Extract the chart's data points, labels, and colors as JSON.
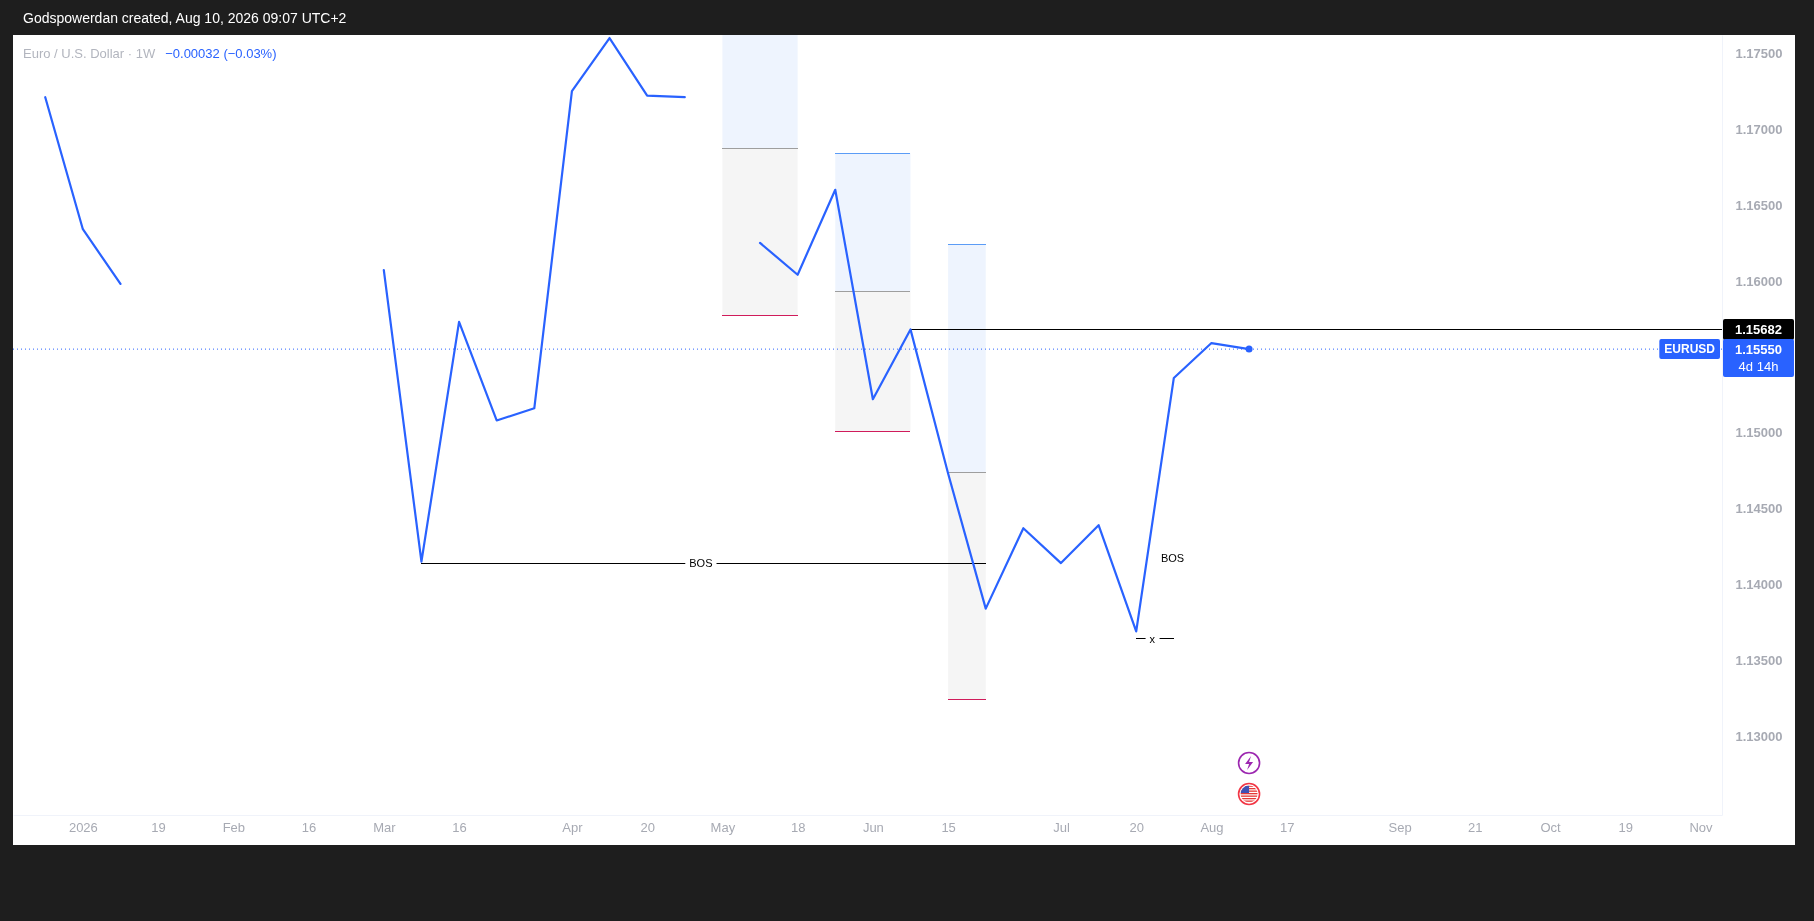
{
  "chart_data": {
    "type": "line",
    "title": "Euro / U.S. Dollar · 1W",
    "subtitle": "−0.00032 (−0.03%)",
    "xlim": [
      "2025-12-23",
      "2026-11-06"
    ],
    "xticks": [
      {
        "value": "2026-01-05",
        "label": "2026"
      },
      {
        "value": "2026-01-19",
        "label": "19"
      },
      {
        "value": "2026-02-02",
        "label": "Feb"
      },
      {
        "value": "2026-02-16",
        "label": "16"
      },
      {
        "value": "2026-03-02",
        "label": "Mar"
      },
      {
        "value": "2026-03-16",
        "label": "16"
      },
      {
        "value": "2026-04-06",
        "label": "Apr"
      },
      {
        "value": "2026-04-20",
        "label": "20"
      },
      {
        "value": "2026-05-04",
        "label": "May"
      },
      {
        "value": "2026-05-18",
        "label": "18"
      },
      {
        "value": "2026-06-01",
        "label": "Jun"
      },
      {
        "value": "2026-06-15",
        "label": "15"
      },
      {
        "value": "2026-07-06",
        "label": "Jul"
      },
      {
        "value": "2026-07-20",
        "label": "20"
      },
      {
        "value": "2026-08-03",
        "label": "Aug"
      },
      {
        "value": "2026-08-17",
        "label": "17"
      },
      {
        "value": "2026-09-07",
        "label": "Sep"
      },
      {
        "value": "2026-09-21",
        "label": "21"
      },
      {
        "value": "2026-10-05",
        "label": "Oct"
      },
      {
        "value": "2026-10-19",
        "label": "19"
      },
      {
        "value": "2026-11-02",
        "label": "Nov"
      }
    ],
    "ylim": [
      1.1248,
      1.1762
    ],
    "yticks": [
      {
        "value": 1.13,
        "label": "1.13000"
      },
      {
        "value": 1.135,
        "label": "1.13500"
      },
      {
        "value": 1.14,
        "label": "1.14000"
      },
      {
        "value": 1.145,
        "label": "1.14500"
      },
      {
        "value": 1.15,
        "label": "1.15000"
      },
      {
        "value": 1.16,
        "label": "1.16000"
      },
      {
        "value": 1.165,
        "label": "1.16500"
      },
      {
        "value": 1.17,
        "label": "1.17000"
      },
      {
        "value": 1.175,
        "label": "1.17500"
      }
    ],
    "series": [
      {
        "name": "EURUSD",
        "color": "#2962ff",
        "x": [
          "2025-12-29",
          "2026-01-05",
          "2026-01-12",
          "2026-01-19",
          "2026-01-26",
          "2026-02-02",
          "2026-02-09",
          "2026-02-16",
          "2026-02-23",
          "2026-03-02",
          "2026-03-09",
          "2026-03-16",
          "2026-03-23",
          "2026-03-30",
          "2026-04-06",
          "2026-04-13",
          "2026-04-20",
          "2026-04-27",
          "2026-05-04",
          "2026-05-11",
          "2026-05-18",
          "2026-05-25",
          "2026-06-01",
          "2026-06-08",
          "2026-06-15",
          "2026-06-22",
          "2026-06-29",
          "2026-07-06",
          "2026-07-13",
          "2026-07-20",
          "2026-07-27",
          "2026-08-03",
          "2026-08-10"
        ],
        "values": [
          1.1721,
          1.1634,
          1.1598,
          null,
          null,
          null,
          null,
          null,
          null,
          1.1607,
          1.1415,
          1.1573,
          1.1508,
          1.1516,
          1.1725,
          1.176,
          1.1722,
          1.1721,
          null,
          1.1625,
          1.1604,
          1.166,
          1.1522,
          1.1568,
          1.1473,
          1.1384,
          1.1437,
          1.1414,
          1.1439,
          1.1369,
          1.1536,
          1.1559,
          1.1555
        ]
      },
      {
        "type": "scatter",
        "color": "#2962ff",
        "x": [
          "2026-08-10"
        ],
        "values": [
          1.1555
        ]
      },
      {
        "color": "#eef4fe",
        "x": [
          "2026-05-04",
          "2026-05-18"
        ],
        "values": [
          null,
          null
        ],
        "lower": [
          1.1687,
          1.1687
        ],
        "upper": [
          1.1762,
          1.1762
        ]
      },
      {
        "color": "#f5f5f5",
        "x": [
          "2026-05-04",
          "2026-05-18"
        ],
        "values": [
          null,
          null
        ],
        "lower": [
          1.1577,
          1.1577
        ],
        "upper": [
          1.1687,
          1.1687
        ]
      },
      {
        "color": "#eef4fe",
        "x": [
          "2026-05-25",
          "2026-06-08"
        ],
        "values": [
          null,
          null
        ],
        "lower": [
          1.1593,
          1.1593
        ],
        "upper": [
          1.1684,
          1.1684
        ]
      },
      {
        "color": "#f5f5f5",
        "x": [
          "2026-05-25",
          "2026-06-08"
        ],
        "values": [
          null,
          null
        ],
        "lower": [
          1.1501,
          1.1501
        ],
        "upper": [
          1.1593,
          1.1593
        ]
      },
      {
        "color": "#eef4fe",
        "x": [
          "2026-06-15",
          "2026-06-22"
        ],
        "values": [
          null,
          null
        ],
        "lower": [
          1.1474,
          1.1474
        ],
        "upper": [
          1.1624,
          1.1624
        ]
      },
      {
        "color": "#f5f5f5",
        "x": [
          "2026-06-15",
          "2026-06-22"
        ],
        "values": [
          null,
          null
        ],
        "lower": [
          1.1324,
          1.1324
        ],
        "upper": [
          1.1474,
          1.1474
        ]
      },
      {
        "color": "#9e9e9e",
        "x": [
          "2026-05-04",
          "2026-05-18"
        ],
        "values": [
          1.1687,
          1.1687
        ]
      },
      {
        "color": "#d01c5b",
        "x": [
          "2026-05-04",
          "2026-05-18"
        ],
        "values": [
          1.1577,
          1.1577
        ]
      },
      {
        "color": "#5b9cf6",
        "x": [
          "2026-05-25",
          "2026-06-08"
        ],
        "values": [
          1.1684,
          1.1684
        ]
      },
      {
        "color": "#9e9e9e",
        "x": [
          "2026-05-25",
          "2026-06-08"
        ],
        "values": [
          1.1593,
          1.1593
        ]
      },
      {
        "color": "#d01c5b",
        "x": [
          "2026-05-25",
          "2026-06-08"
        ],
        "values": [
          1.1501,
          1.1501
        ]
      },
      {
        "color": "#5b9cf6",
        "x": [
          "2026-06-15",
          "2026-06-22"
        ],
        "values": [
          1.1624,
          1.1624
        ]
      },
      {
        "color": "#9e9e9e",
        "x": [
          "2026-06-15",
          "2026-06-22"
        ],
        "values": [
          1.1474,
          1.1474
        ]
      },
      {
        "color": "#d01c5b",
        "x": [
          "2026-06-15",
          "2026-06-22"
        ],
        "values": [
          1.1324,
          1.1324
        ]
      },
      {
        "color": "#000000",
        "x": [
          "2026-03-09",
          "2026-06-22"
        ],
        "values": [
          1.1414,
          1.1414
        ]
      },
      {
        "color": "#000000",
        "x": [
          "2026-07-20",
          "2026-07-27"
        ],
        "values": [
          1.1364,
          1.1364
        ]
      },
      {
        "color": "#000000",
        "x": [
          "2026-06-08",
          "2026-11-06"
        ],
        "values": [
          1.15682,
          1.15682
        ]
      }
    ],
    "ref_lines": [
      {
        "axis": "y",
        "value": 1.1555,
        "label": "1.15550",
        "color": "#2962ff",
        "line_style": "dotted"
      }
    ],
    "annotations": [
      "Godspowerdan created, Aug 10, 2026 09:07 UTC+2",
      {
        "text": "BOS",
        "x": "2026-04-30",
        "y": 1.1414
      },
      {
        "text": "BOS",
        "x": "2026-07-22",
        "y": 1.1417
      },
      {
        "text": "x",
        "x": "2026-07-23",
        "y": 1.1364
      },
      {
        "text": "1.15682",
        "x": "2026-11-06",
        "y": 1.15682
      },
      "4d 14h"
    ]
  }
}
